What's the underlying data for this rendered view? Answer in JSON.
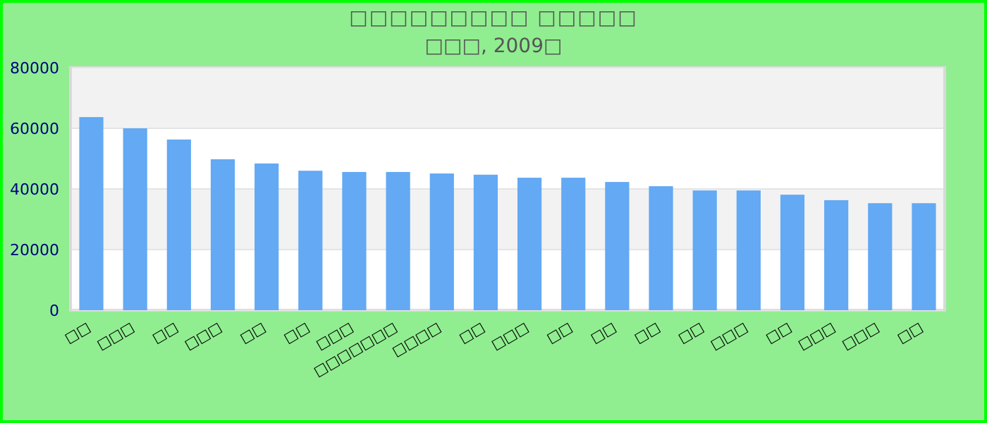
{
  "chart_data": {
    "type": "bar",
    "title": "□□□□□□□□□ □□□□□",
    "subtitle": "□□□, 2009□",
    "categories": [
      "□□",
      "□□□",
      "□□",
      "□□□",
      "□□",
      "□□",
      "□□□",
      "□□□□□□□",
      "□□□□",
      "□□",
      "□□□",
      "□□",
      "□□",
      "□□",
      "□□",
      "□□□",
      "□□",
      "□□□",
      "□□□",
      "□□"
    ],
    "values": [
      63700,
      60000,
      56300,
      49800,
      48400,
      46000,
      45600,
      45600,
      45100,
      44700,
      43700,
      43700,
      42300,
      40900,
      39500,
      39500,
      38100,
      36300,
      35300,
      35300
    ],
    "color": "#63a9f4",
    "ylim": [
      0,
      80000
    ],
    "yticks": [
      0,
      20000,
      40000,
      60000,
      80000
    ],
    "grid": "y"
  }
}
